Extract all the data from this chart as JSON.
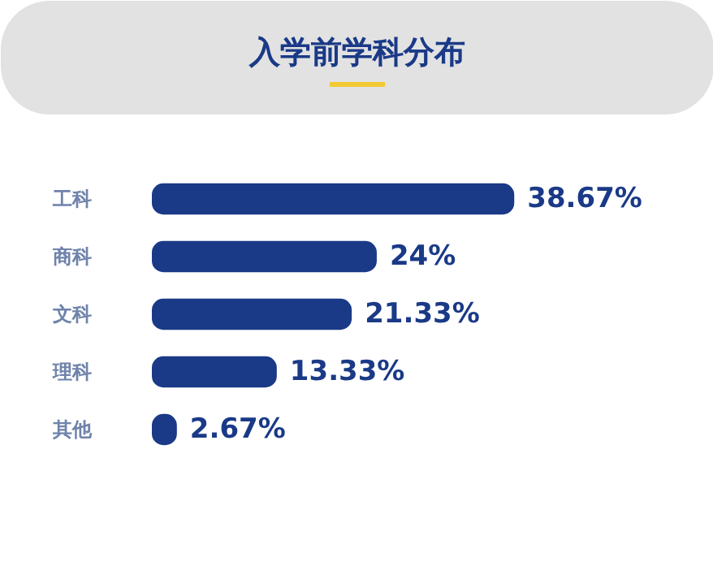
{
  "chart_data": {
    "type": "bar",
    "orientation": "horizontal",
    "title": "入学前学科分布",
    "categories": [
      "工科",
      "商科",
      "文科",
      "理科",
      "其他"
    ],
    "values": [
      38.67,
      24,
      21.33,
      13.33,
      2.67
    ],
    "value_labels": [
      "38.67%",
      "24%",
      "21.33%",
      "13.33%",
      "2.67%"
    ],
    "color": "#1a3a87"
  }
}
